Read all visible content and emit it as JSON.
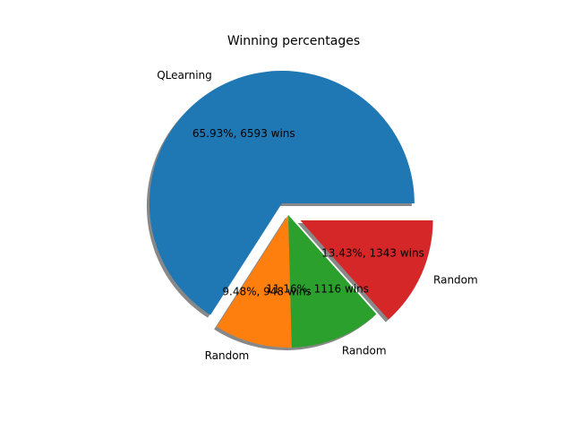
{
  "chart_data": {
    "type": "pie",
    "title": "Winning percentages",
    "slices": [
      {
        "label": "QLearning",
        "value": 6593,
        "pct_label": "65.93%, 6593 wins",
        "color": "#1f77b4",
        "explode": true
      },
      {
        "label": "Random",
        "value": 948,
        "pct_label": "9.48%, 948 wins",
        "color": "#ff7f0e",
        "explode": false
      },
      {
        "label": "Random",
        "value": 1116,
        "pct_label": "11.16%, 1116 wins",
        "color": "#2ca02c",
        "explode": false
      },
      {
        "label": "Random",
        "value": 1343,
        "pct_label": "13.43%, 1343 wins",
        "color": "#d62728",
        "explode": true
      }
    ],
    "start_angle_deg": 0,
    "direction": "counterclockwise",
    "shadow": true,
    "legend": "none"
  }
}
